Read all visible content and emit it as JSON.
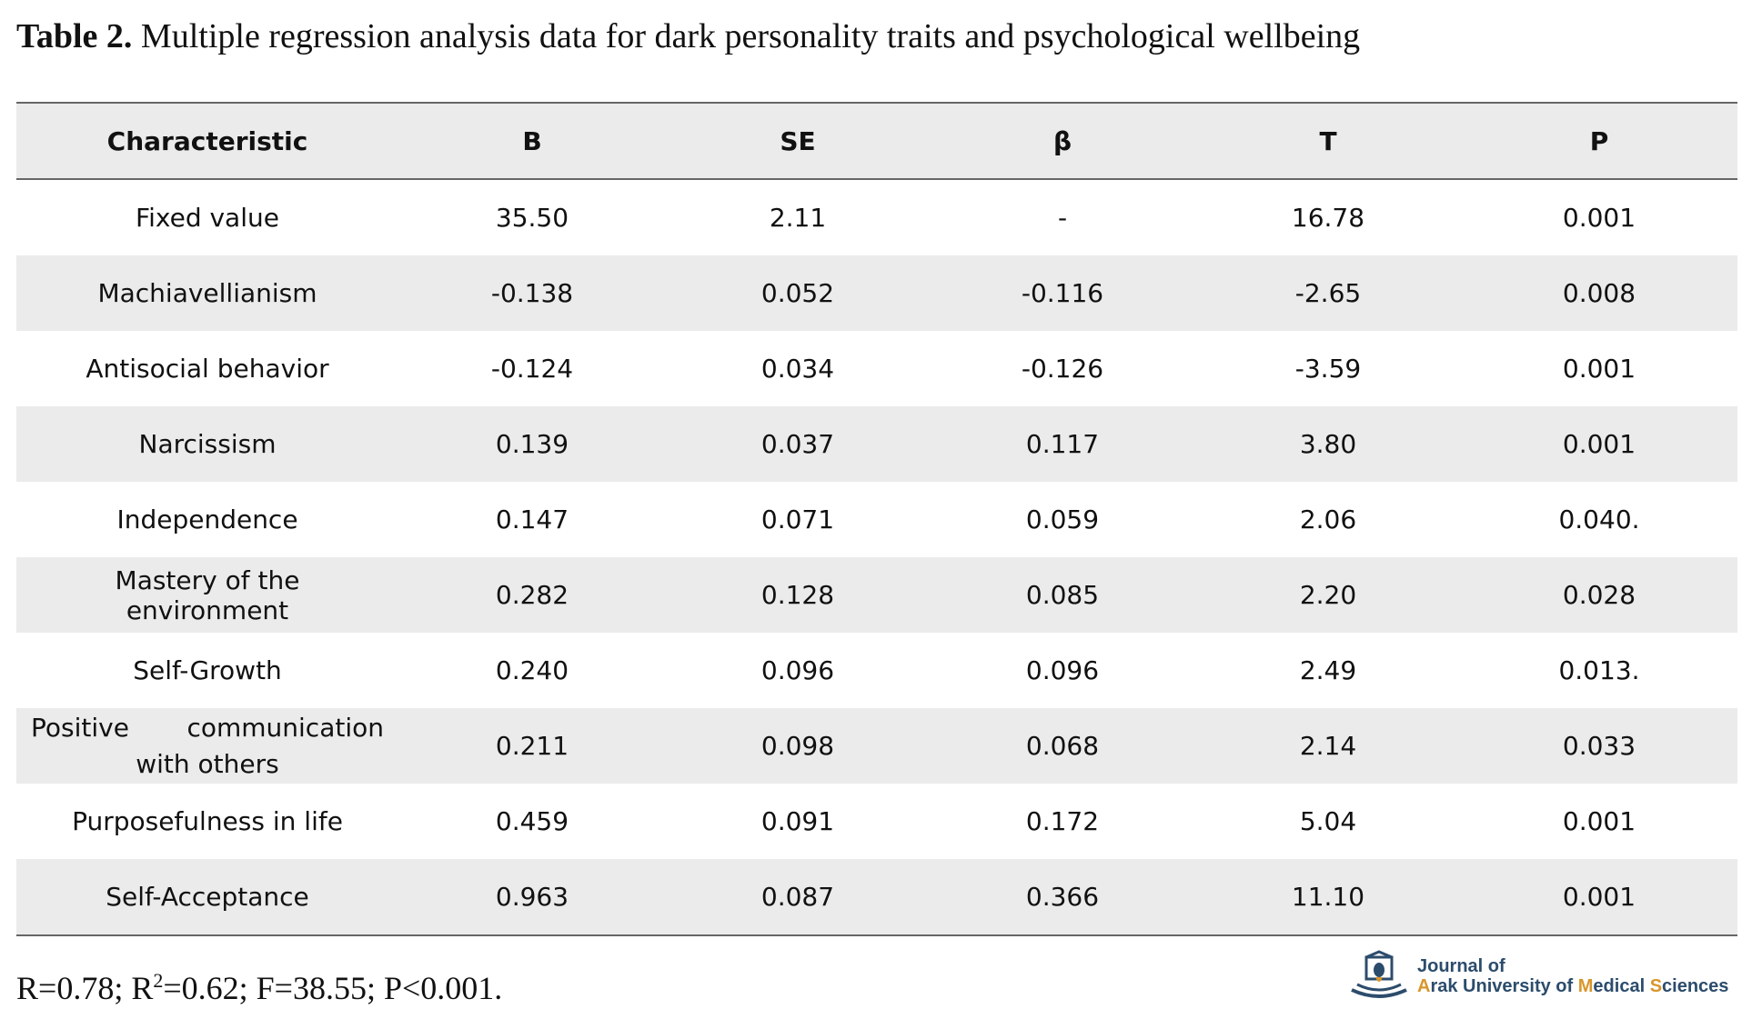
{
  "caption": {
    "label": "Table 2.",
    "text": " Multiple regression analysis data for dark personality traits and psychological wellbeing"
  },
  "table": {
    "headers": [
      "Characteristic",
      "B",
      "SE",
      "β",
      "T",
      "P"
    ],
    "rows": [
      [
        "Fixed value",
        "35.50",
        "2.11",
        "-",
        "16.78",
        "0.001"
      ],
      [
        "Machiavellianism",
        "-0.138",
        "0.052",
        "-0.116",
        "-2.65",
        "0.008"
      ],
      [
        "Antisocial behavior",
        "-0.124",
        "0.034",
        "-0.126",
        "-3.59",
        "0.001"
      ],
      [
        "Narcissism",
        "0.139",
        "0.037",
        "0.117",
        "3.80",
        "0.001"
      ],
      [
        "Independence",
        "0.147",
        "0.071",
        "0.059",
        "2.06",
        "0.040."
      ],
      [
        "Mastery of the environment",
        "0.282",
        "0.128",
        "0.085",
        "2.20",
        "0.028"
      ],
      [
        "Self-Growth",
        "0.240",
        "0.096",
        "0.096",
        "2.49",
        "0.013."
      ],
      [
        "Positive communication with others",
        "0.211",
        "0.098",
        "0.068",
        "2.14",
        "0.033"
      ],
      [
        "Purposefulness in life",
        "0.459",
        "0.091",
        "0.172",
        "5.04",
        "0.001"
      ],
      [
        "Self-Acceptance",
        "0.963",
        "0.087",
        "0.366",
        "11.10",
        "0.001"
      ]
    ],
    "wrapped_row_parts": [
      "Positive",
      "communication",
      "with others"
    ]
  },
  "footnote": {
    "r": "R=0.78; R",
    "sup": "2",
    "rest": "=0.62; F=38.55; P<0.001."
  },
  "logo": {
    "line1": "Journal of",
    "line2_parts": [
      "A",
      "rak University of ",
      "M",
      "edical ",
      "S",
      "ciences"
    ]
  },
  "colors": {
    "row_shade": "#ebebeb",
    "rule": "#666666",
    "logo_blue": "#2c4c6c",
    "logo_accent": "#d9962b"
  }
}
